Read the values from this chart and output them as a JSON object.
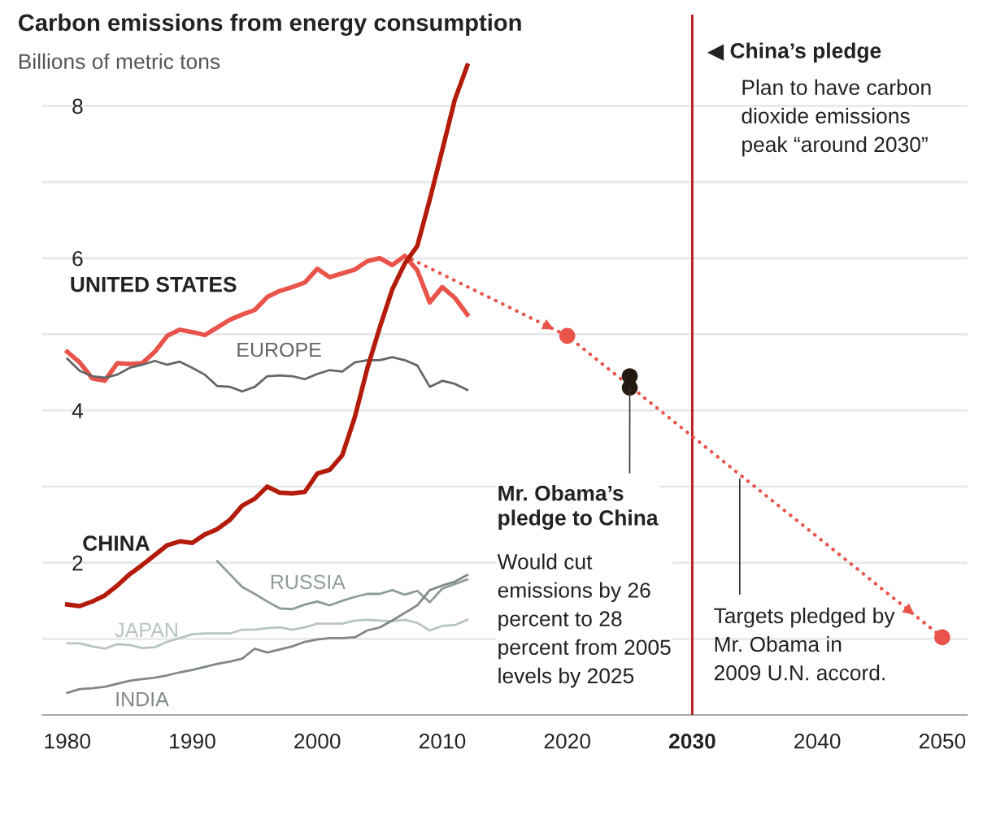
{
  "chart_data": {
    "type": "line",
    "title": "Carbon emissions from energy consumption",
    "subtitle": "Billions of metric tons",
    "x": [
      1980,
      1981,
      1982,
      1983,
      1984,
      1985,
      1986,
      1987,
      1988,
      1989,
      1990,
      1991,
      1992,
      1993,
      1994,
      1995,
      1996,
      1997,
      1998,
      1999,
      2000,
      2001,
      2002,
      2003,
      2004,
      2005,
      2006,
      2007,
      2008,
      2009,
      2010,
      2011,
      2012
    ],
    "series": [
      {
        "name": "UNITED STATES",
        "color": "#e8534a",
        "values": [
          4.77,
          4.63,
          4.42,
          4.39,
          4.62,
          4.61,
          4.62,
          4.77,
          4.98,
          5.06,
          5.03,
          4.99,
          5.09,
          5.19,
          5.26,
          5.32,
          5.49,
          5.57,
          5.62,
          5.68,
          5.86,
          5.75,
          5.8,
          5.85,
          5.96,
          6.0,
          5.91,
          6.03,
          5.84,
          5.42,
          5.62,
          5.48,
          5.26
        ]
      },
      {
        "name": "EUROPE",
        "color": "#666666",
        "values": [
          4.68,
          4.52,
          4.45,
          4.43,
          4.47,
          4.56,
          4.6,
          4.65,
          4.6,
          4.64,
          4.56,
          4.47,
          4.32,
          4.31,
          4.25,
          4.31,
          4.45,
          4.46,
          4.45,
          4.41,
          4.48,
          4.53,
          4.51,
          4.63,
          4.66,
          4.66,
          4.7,
          4.66,
          4.59,
          4.31,
          4.39,
          4.35,
          4.27
        ]
      },
      {
        "name": "CHINA",
        "color": "#b31b0b",
        "values": [
          1.45,
          1.43,
          1.49,
          1.57,
          1.7,
          1.85,
          1.97,
          2.1,
          2.23,
          2.28,
          2.26,
          2.37,
          2.44,
          2.56,
          2.75,
          2.84,
          3.0,
          2.92,
          2.91,
          2.93,
          3.17,
          3.22,
          3.41,
          3.91,
          4.55,
          5.09,
          5.59,
          5.93,
          6.16,
          6.77,
          7.42,
          8.08,
          8.53
        ]
      },
      {
        "name": "RUSSIA",
        "color": "#8e9a9a",
        "values": [
          null,
          null,
          null,
          null,
          null,
          null,
          null,
          null,
          null,
          null,
          null,
          null,
          2.02,
          1.85,
          1.68,
          1.59,
          1.49,
          1.4,
          1.39,
          1.45,
          1.49,
          1.44,
          1.5,
          1.55,
          1.59,
          1.59,
          1.64,
          1.58,
          1.63,
          1.48,
          1.66,
          1.72,
          1.78
        ]
      },
      {
        "name": "JAPAN",
        "color": "#b8c4c4",
        "values": [
          0.94,
          0.94,
          0.9,
          0.87,
          0.93,
          0.92,
          0.88,
          0.89,
          0.96,
          1.01,
          1.06,
          1.07,
          1.07,
          1.07,
          1.12,
          1.12,
          1.14,
          1.15,
          1.12,
          1.15,
          1.2,
          1.2,
          1.2,
          1.24,
          1.25,
          1.24,
          1.23,
          1.25,
          1.21,
          1.11,
          1.17,
          1.18,
          1.25
        ]
      },
      {
        "name": "INDIA",
        "color": "#7f8787",
        "values": [
          0.29,
          0.34,
          0.35,
          0.37,
          0.41,
          0.45,
          0.47,
          0.49,
          0.52,
          0.56,
          0.59,
          0.63,
          0.67,
          0.7,
          0.74,
          0.87,
          0.82,
          0.86,
          0.9,
          0.96,
          0.99,
          1.01,
          1.01,
          1.02,
          1.11,
          1.15,
          1.24,
          1.34,
          1.44,
          1.64,
          1.7,
          1.75,
          1.84
        ]
      },
      {
        "type": "line",
        "color": "#e8534a",
        "line_style": "dotted",
        "x": [
          2007,
          2020,
          2050
        ],
        "values": [
          6.03,
          4.98,
          1.02
        ]
      },
      {
        "type": "scatter",
        "marker": "circle",
        "color": "#e8534a",
        "x": [
          2020,
          2050
        ],
        "values": [
          4.98,
          1.02
        ]
      },
      {
        "type": "scatter",
        "marker": "circle",
        "color": "#231a12",
        "x": [
          2025,
          2025
        ],
        "values": [
          4.45,
          4.3
        ]
      }
    ],
    "xlim": [
      1978,
      2052
    ],
    "xticks": [
      1980,
      1990,
      2000,
      2010,
      2020,
      2030,
      2040,
      2050
    ],
    "ylim": [
      0,
      9.2
    ],
    "yticks": [
      {
        "value": 1,
        "label": null
      },
      2,
      {
        "value": 3,
        "label": null
      },
      4,
      {
        "value": 5,
        "label": null
      },
      6,
      {
        "value": 7,
        "label": null
      },
      8
    ],
    "grid": "y",
    "marker": "none",
    "line_style": "solid",
    "ref_lines": [
      {
        "axis": "x",
        "value": 2030,
        "label": "◀ China’s pledge",
        "color": "#b5171b"
      }
    ],
    "annotations": [
      {
        "text": "Mr. Obama’s\npledge to China",
        "x": 2025,
        "y": 4.3
      },
      "Would cut\nemissions by 26\npercent to 28\npercent from 2005\nlevels by 2025",
      {
        "text": "Targets pledged by\nMr. Obama in\n2009 U.N. accord.",
        "x": 2033.8,
        "y": 3.1
      },
      "Plan to have carbon\ndioxide emissions\npeak “around 2030”"
    ]
  }
}
